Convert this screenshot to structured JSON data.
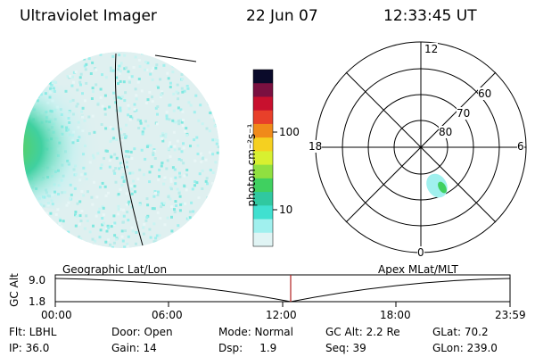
{
  "header": {
    "instrument": "Ultraviolet Imager",
    "date": "22 Jun 07",
    "time": "12:33:45 UT"
  },
  "colorbar": {
    "unit_label": "photon cm⁻²s⁻¹",
    "ticks": [
      "100",
      "10"
    ],
    "colors": [
      "#0a0a2a",
      "#7a1040",
      "#c8102e",
      "#e8402a",
      "#f08a1a",
      "#f5d020",
      "#d8f030",
      "#90e040",
      "#40d060",
      "#30c8a0",
      "#40e0d0",
      "#a0f0ee",
      "#e0f4f4"
    ]
  },
  "polar_plot": {
    "mlt_labels": {
      "top": "12",
      "left": "18",
      "right": "6",
      "bottom": "0"
    },
    "lat_labels": [
      "60",
      "70",
      "80"
    ]
  },
  "timeline": {
    "ylabel": "GC Alt",
    "y_ticks": [
      "9.0",
      "1.8"
    ],
    "left_caption": "Geographic Lat/Lon",
    "right_caption": "Apex MLat/MLT",
    "x_ticks": [
      "00:00",
      "06:00",
      "12:00",
      "18:00",
      "23:59"
    ]
  },
  "info": {
    "filter": "Flt: LBHL",
    "door": "Door: Open",
    "mode": "Mode: Normal",
    "gc_alt": "GC Alt: 2.2 Re",
    "glat": "GLat:  70.2",
    "ip": "IP: 36.0",
    "gain": "Gain: 14",
    "dsp": "Dsp:     1.9",
    "seq": "Seq: 39",
    "glon": "GLon: 239.0"
  }
}
